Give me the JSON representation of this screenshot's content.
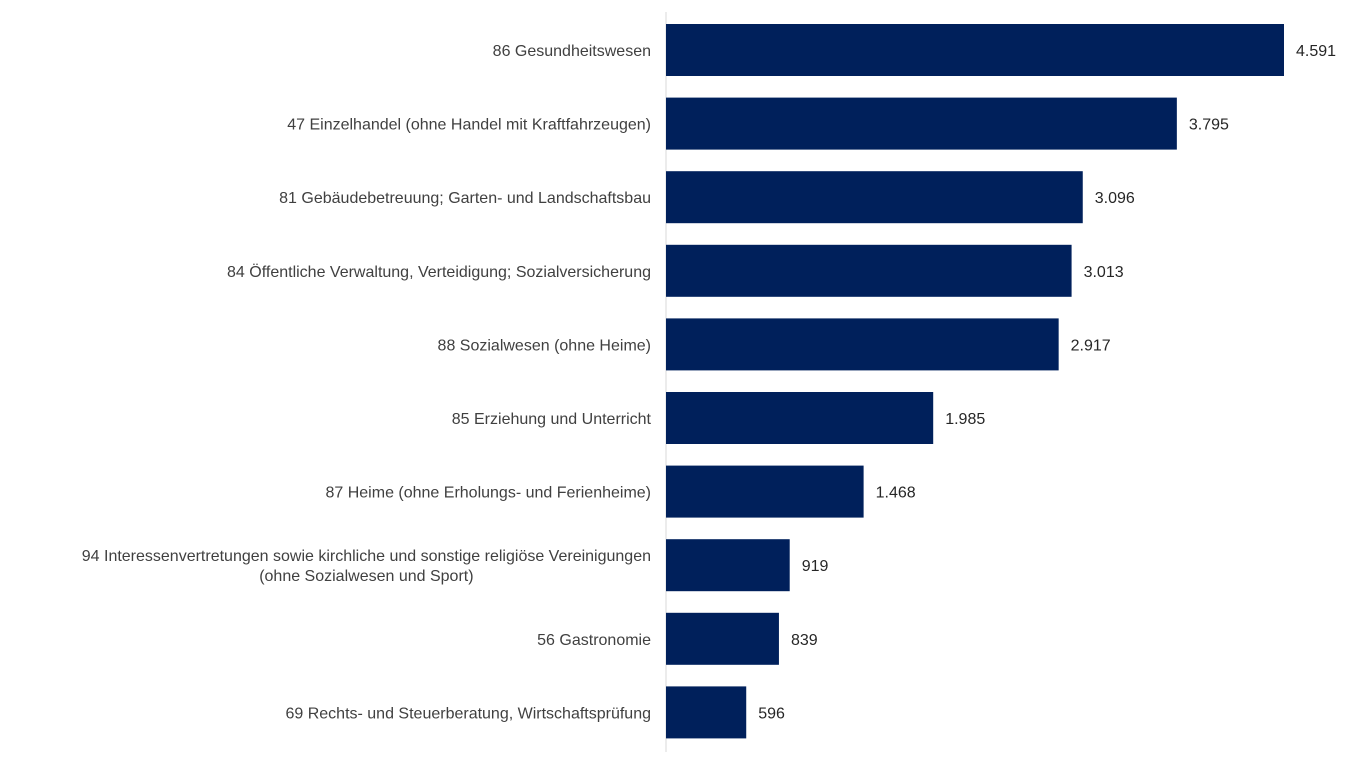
{
  "chart_data": {
    "type": "bar",
    "orientation": "horizontal",
    "categories": [
      [
        "86 Gesundheitswesen"
      ],
      [
        "47 Einzelhandel (ohne Handel mit Kraftfahrzeugen)"
      ],
      [
        "81 Gebäudebetreuung; Garten- und Landschaftsbau"
      ],
      [
        "84 Öffentliche Verwaltung, Verteidigung; Sozialversicherung"
      ],
      [
        "88 Sozialwesen (ohne Heime)"
      ],
      [
        "85 Erziehung und Unterricht"
      ],
      [
        "87 Heime (ohne Erholungs- und Ferienheime)"
      ],
      [
        "94 Interessenvertretungen sowie kirchliche und sonstige religiöse Vereinigungen",
        "(ohne Sozialwesen und Sport)"
      ],
      [
        "56 Gastronomie"
      ],
      [
        "69 Rechts- und Steuerberatung, Wirtschaftsprüfung"
      ]
    ],
    "values": [
      4591,
      3795,
      3096,
      3013,
      2917,
      1985,
      1468,
      919,
      839,
      596
    ],
    "value_labels": [
      "4.591",
      "3.795",
      "3.096",
      "3.013",
      "2.917",
      "1.985",
      "1.468",
      "919",
      "839",
      "596"
    ],
    "xlim": [
      0,
      5000
    ],
    "grid": false,
    "legend": "none",
    "bar_color": "#00205B"
  }
}
